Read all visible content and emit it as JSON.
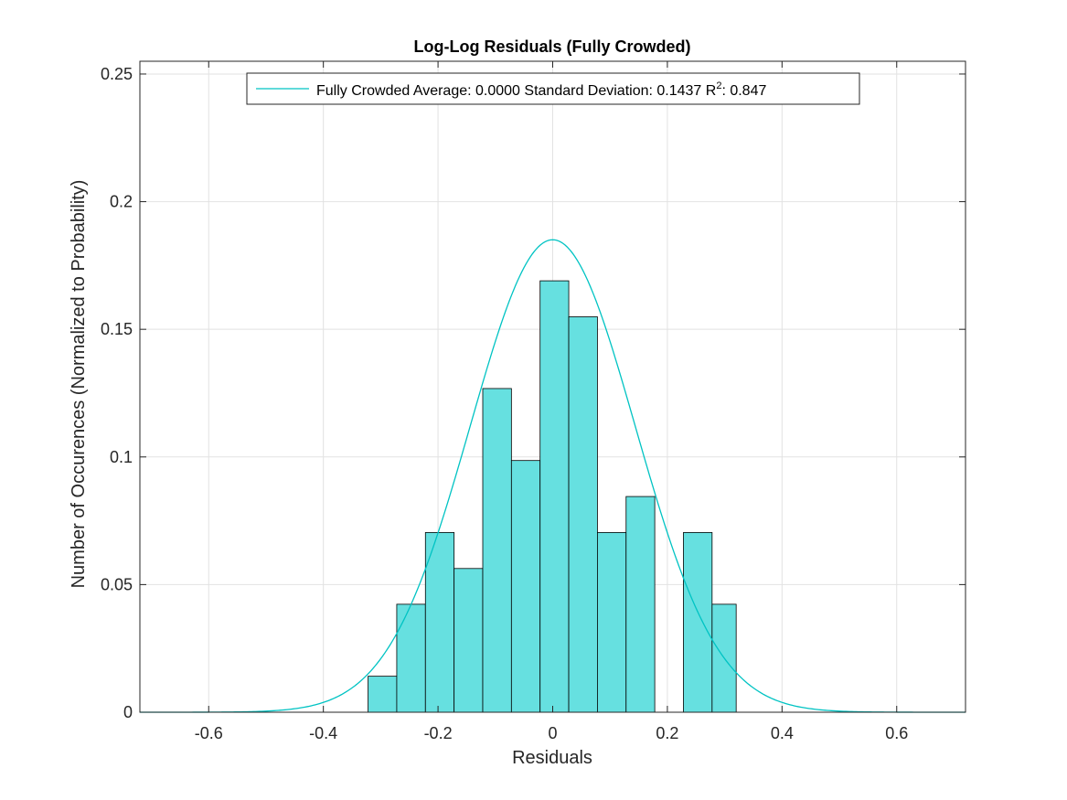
{
  "chart_data": {
    "type": "bar",
    "title": "Log-Log Residuals (Fully Crowded)",
    "xlabel": "Residuals",
    "ylabel": "Number of Occurences (Normalized to Probability)",
    "xlim": [
      -0.72,
      0.72
    ],
    "ylim": [
      0,
      0.255
    ],
    "xticks": [
      -0.6,
      -0.4,
      -0.2,
      0,
      0.2,
      0.4,
      0.6
    ],
    "xtick_labels": [
      "-0.6",
      "-0.4",
      "-0.2",
      "0",
      "0.2",
      "0.4",
      "0.6"
    ],
    "yticks": [
      0,
      0.05,
      0.1,
      0.15,
      0.2,
      0.25
    ],
    "ytick_labels": [
      "0",
      "0.05",
      "0.1",
      "0.15",
      "0.2",
      "0.25"
    ],
    "grid": true,
    "bin_edges": [
      -0.322,
      -0.272,
      -0.222,
      -0.172,
      -0.122,
      -0.072,
      -0.022,
      0.028,
      0.078,
      0.128,
      0.178,
      0.228,
      0.278,
      0.32
    ],
    "bin_values": [
      0.0141,
      0.0423,
      0.0704,
      0.0563,
      0.1268,
      0.0986,
      0.169,
      0.1549,
      0.0704,
      0.0845,
      0.0,
      0.0704,
      0.0423
    ],
    "bar_color": "#66e0e0",
    "bar_edge_color": "#000000",
    "fit": {
      "type": "normal",
      "mean": 0.0,
      "std": 0.1437,
      "color": "#00c3c3"
    },
    "legend": {
      "placement": "top",
      "entry_main": "Fully Crowded Average: 0.0000 Standard Deviation: 0.1437 R",
      "entry_sup": "2",
      "entry_tail": ": 0.847"
    }
  }
}
